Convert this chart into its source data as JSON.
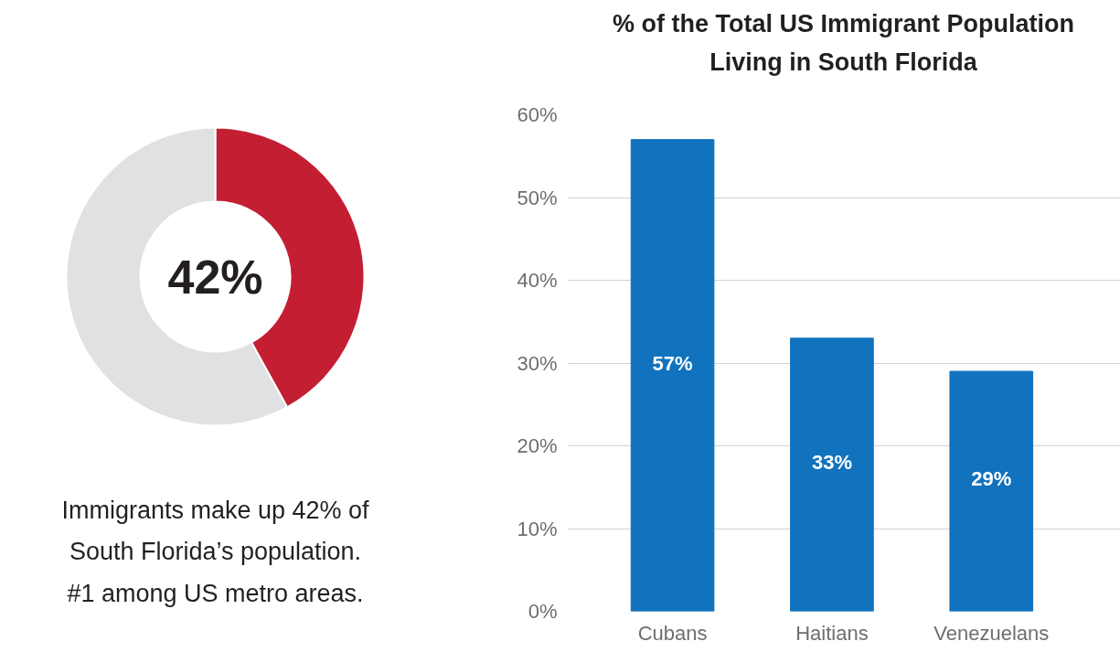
{
  "chart_data": [
    {
      "type": "donut",
      "categories": [
        null,
        null
      ],
      "values": [
        42,
        58
      ],
      "colors": [
        "#c41e32",
        "#e0e1e3"
      ],
      "annotations": [
        "42%",
        "Immigrants make up 42% of",
        "South Florida’s population.",
        "#1 among US metro areas."
      ]
    },
    {
      "type": "bar",
      "title": "% of the Total US Immigrant Population\nLiving in South Florida",
      "categories": [
        "Cubans",
        "Haitians",
        "Venezuelans"
      ],
      "values": [
        57,
        33,
        29
      ],
      "color": "#1172be",
      "value_labels": [
        "57%",
        "33%",
        "29%"
      ],
      "ylim": [
        0,
        60
      ],
      "yticks": [
        {
          "value": 0,
          "label": "0%"
        },
        {
          "value": 10,
          "label": "10%"
        },
        {
          "value": 20,
          "label": "20%"
        },
        {
          "value": 30,
          "label": "30%"
        },
        {
          "value": 40,
          "label": "40%"
        },
        {
          "value": 50,
          "label": "50%"
        },
        {
          "value": 60,
          "label": "60%"
        }
      ],
      "grid": "y"
    }
  ]
}
